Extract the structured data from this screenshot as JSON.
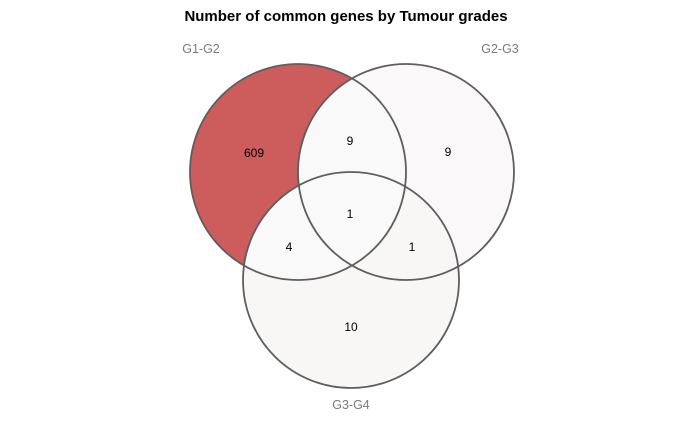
{
  "title": "Number of common genes by Tumour grades",
  "sets": [
    {
      "id": "g1g2",
      "label": "G1-G2"
    },
    {
      "id": "g2g3",
      "label": "G2-G3"
    },
    {
      "id": "g3g4",
      "label": "G3-G4"
    }
  ],
  "regions": {
    "g1g2_only": "609",
    "g2g3_only": "9",
    "g3g4_only": "10",
    "g1g2_g2g3": "9",
    "g1g2_g3g4": "4",
    "g2g3_g3g4": "1",
    "all_three": "1"
  },
  "colors": {
    "g1g2_only": "#cd5c5c",
    "g2g3_only": "#faf8f8",
    "g3g4_only": "#f8f7f6",
    "overlaps": "#faf9f9",
    "outline": "#5e5e5e"
  }
}
